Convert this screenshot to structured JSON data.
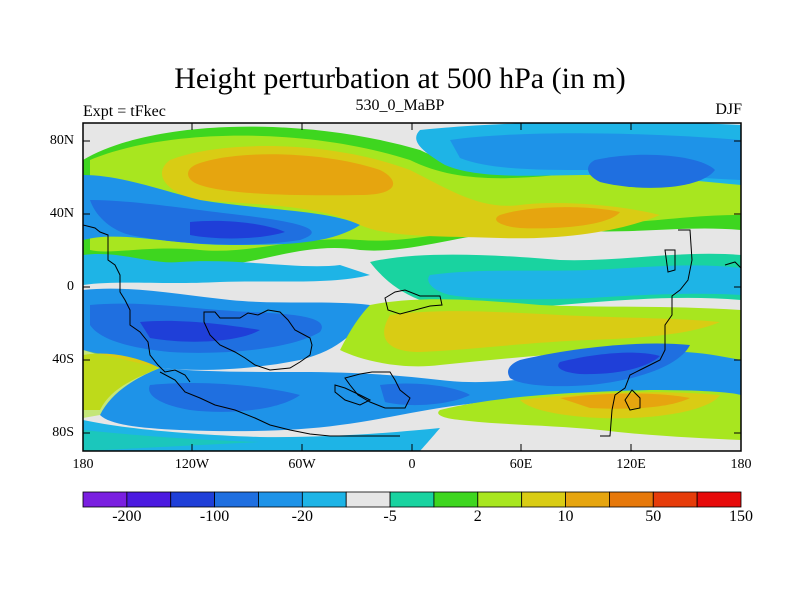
{
  "title": "Height perturbation at 500 hPa (in m)",
  "left_label": "Expt = tFkec",
  "center_label": "530_0_MaBP",
  "right_label": "DJF",
  "lat_ticks": [
    "80N",
    "40N",
    "0",
    "40S",
    "80S"
  ],
  "lon_ticks": [
    "180",
    "120W",
    "60W",
    "0",
    "60E",
    "120E",
    "180"
  ],
  "colorbar": {
    "colors": [
      "#7a1fe0",
      "#4b1ae0",
      "#1f3fd8",
      "#1f6fe0",
      "#1e93e8",
      "#1eb4e6",
      "#e6e6e6",
      "#19d3a0",
      "#3ed61f",
      "#a8e61f",
      "#d9cc14",
      "#e6a50f",
      "#e6780a",
      "#e63c0a",
      "#e60a0a"
    ],
    "labels": [
      "-200",
      "-100",
      "-20",
      "-5",
      "2",
      "10",
      "50",
      "150"
    ]
  }
}
